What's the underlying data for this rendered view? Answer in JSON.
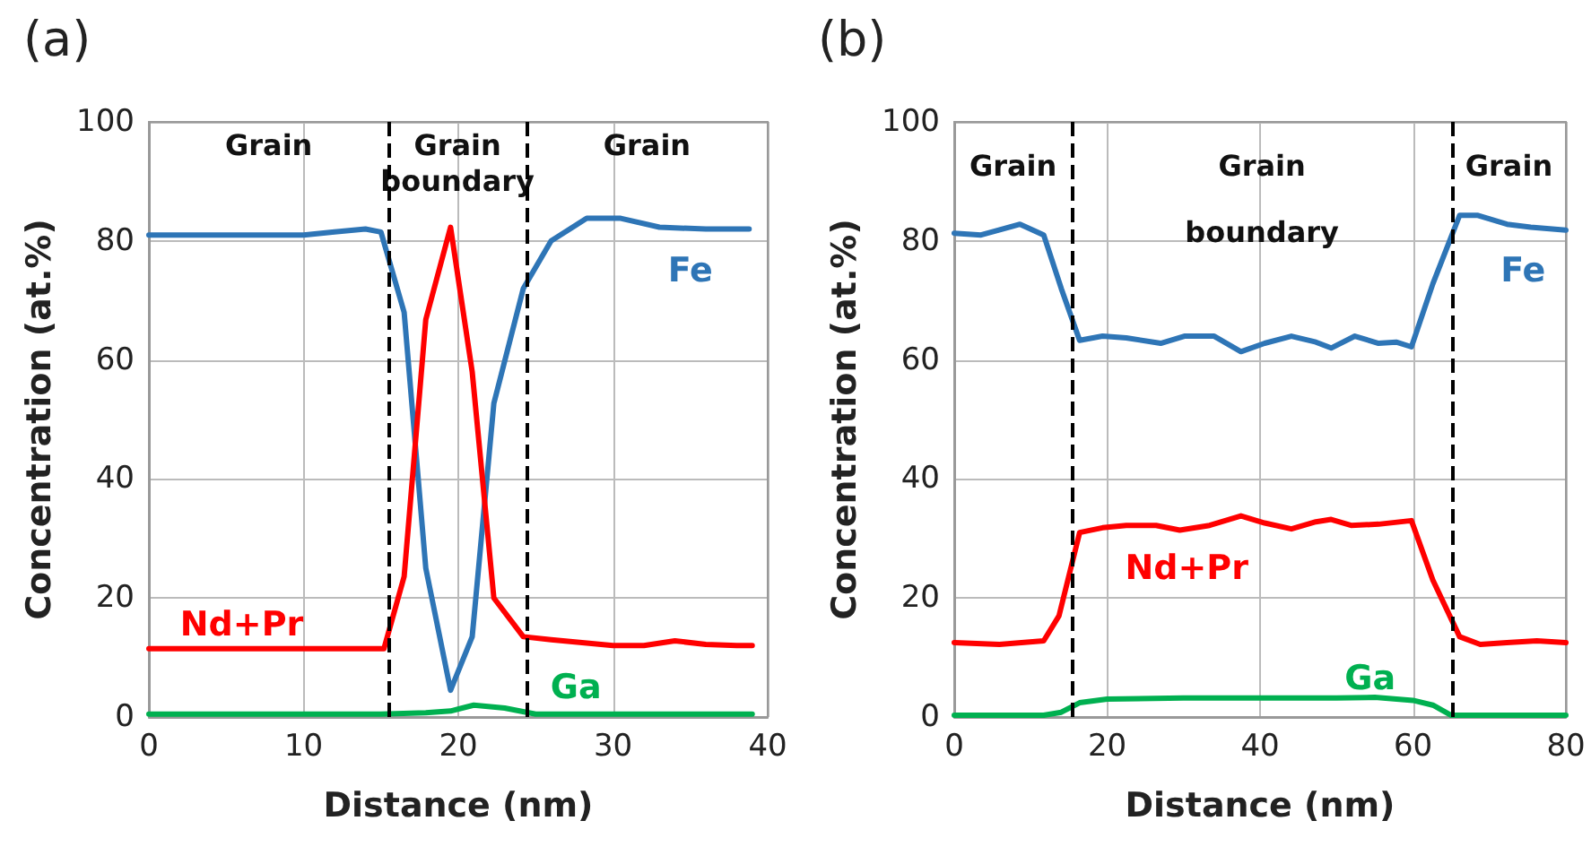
{
  "chart_data": [
    {
      "type": "line",
      "title": "(a)",
      "xlabel": "Distance (nm)",
      "ylabel": "Concentration (at.%)",
      "xlim": [
        0,
        40
      ],
      "xticks": [
        0,
        10,
        20,
        30,
        40
      ],
      "ylim": [
        0,
        100
      ],
      "yticks": [
        0,
        20,
        40,
        60,
        80,
        100
      ],
      "grid": true,
      "legend": false,
      "marker": "none",
      "line_style": "solid",
      "annotations": [
        "Grain",
        "Grain\nboundary",
        "Grain"
      ],
      "ref_lines": [
        {
          "axis": "x",
          "value": 15.5,
          "color": "#000000",
          "line_style": "dashed"
        },
        {
          "axis": "x",
          "value": 24.4,
          "color": "#000000",
          "line_style": "dashed"
        }
      ],
      "series": [
        {
          "name": "Fe",
          "color": "#2e75b6",
          "x": [
            0,
            2,
            4,
            6,
            8,
            10,
            12,
            14,
            15,
            16.5,
            17.9,
            19.5,
            20.9,
            22.3,
            24.2,
            26,
            28.3,
            30.5,
            33,
            36,
            38.8
          ],
          "values": [
            81,
            81,
            81,
            81,
            81,
            81,
            81.5,
            82,
            81.5,
            68,
            25,
            4.5,
            13.5,
            52.7,
            72,
            80,
            83.8,
            83.8,
            82.3,
            82,
            82
          ]
        },
        {
          "name": "Nd+Pr",
          "color": "#ff0000",
          "x": [
            0,
            2,
            4,
            6,
            8,
            10,
            12,
            14,
            15.2,
            16.5,
            17.9,
            19.5,
            20.9,
            22.3,
            24.2,
            26,
            28,
            30,
            32,
            34,
            36,
            38,
            39
          ],
          "values": [
            11.5,
            11.5,
            11.5,
            11.5,
            11.5,
            11.5,
            11.5,
            11.5,
            11.5,
            23.6,
            66.8,
            82.3,
            58,
            20,
            13.5,
            13,
            12.5,
            12,
            12,
            12.8,
            12.2,
            12,
            12
          ]
        },
        {
          "name": "Ga",
          "color": "#00b050",
          "x": [
            0,
            5,
            10,
            15,
            17.9,
            19.5,
            21,
            23,
            25,
            30,
            35,
            39
          ],
          "values": [
            0.5,
            0.5,
            0.5,
            0.5,
            0.7,
            1,
            2,
            1.5,
            0.5,
            0.5,
            0.5,
            0.5
          ]
        }
      ]
    },
    {
      "type": "line",
      "title": "(b)",
      "xlabel": "Distance (nm)",
      "ylabel": "Concentration (at.%)",
      "xlim": [
        0,
        80
      ],
      "xticks": [
        0,
        20,
        40,
        60,
        80
      ],
      "ylim": [
        0,
        100
      ],
      "yticks": [
        0,
        20,
        40,
        60,
        80,
        100
      ],
      "grid": true,
      "legend": false,
      "marker": "none",
      "line_style": "solid",
      "annotations": [
        "Grain",
        "Grain\nboundary",
        "Grain"
      ],
      "ref_lines": [
        {
          "axis": "x",
          "value": 15.4,
          "color": "#000000",
          "line_style": "dashed"
        },
        {
          "axis": "x",
          "value": 65.1,
          "color": "#000000",
          "line_style": "dashed"
        }
      ],
      "series": [
        {
          "name": "Fe",
          "color": "#2e75b6",
          "x": [
            0,
            3.5,
            8.6,
            11.7,
            14,
            16.4,
            19.4,
            22.5,
            27,
            30.1,
            34,
            37.5,
            40.6,
            44.1,
            47.3,
            49.3,
            52.4,
            55.5,
            57.8,
            59.8,
            62.6,
            66.1,
            68.4,
            72.3,
            75.4,
            80
          ],
          "values": [
            81.3,
            81,
            82.8,
            81,
            72,
            63.3,
            64,
            63.7,
            62.8,
            64,
            64,
            61.4,
            62.8,
            64,
            63,
            62,
            64,
            62.8,
            63,
            62.2,
            72.8,
            84.3,
            84.3,
            82.8,
            82.3,
            81.8
          ]
        },
        {
          "name": "Nd+Pr",
          "color": "#ff0000",
          "x": [
            0,
            5.9,
            11.7,
            13.7,
            16.4,
            19.4,
            22.5,
            26.4,
            29.5,
            33.4,
            37.5,
            40.6,
            44.1,
            47.3,
            49.3,
            51.9,
            55.5,
            59.8,
            62.6,
            66.1,
            68.8,
            72.3,
            76.2,
            80
          ],
          "values": [
            12.5,
            12.2,
            12.8,
            17,
            31,
            31.8,
            32.2,
            32.2,
            31.4,
            32.2,
            33.8,
            32.6,
            31.6,
            32.8,
            33.2,
            32.2,
            32.4,
            33,
            23,
            13.5,
            12.2,
            12.5,
            12.8,
            12.5
          ]
        },
        {
          "name": "Ga",
          "color": "#00b050",
          "x": [
            0,
            5,
            11.7,
            14,
            16.4,
            20,
            30,
            40,
            50,
            55,
            60,
            62.6,
            65,
            70,
            80
          ],
          "values": [
            0.3,
            0.3,
            0.3,
            0.8,
            2.4,
            3,
            3.2,
            3.2,
            3.2,
            3.3,
            2.8,
            2,
            0.3,
            0.3,
            0.3
          ]
        }
      ]
    }
  ]
}
